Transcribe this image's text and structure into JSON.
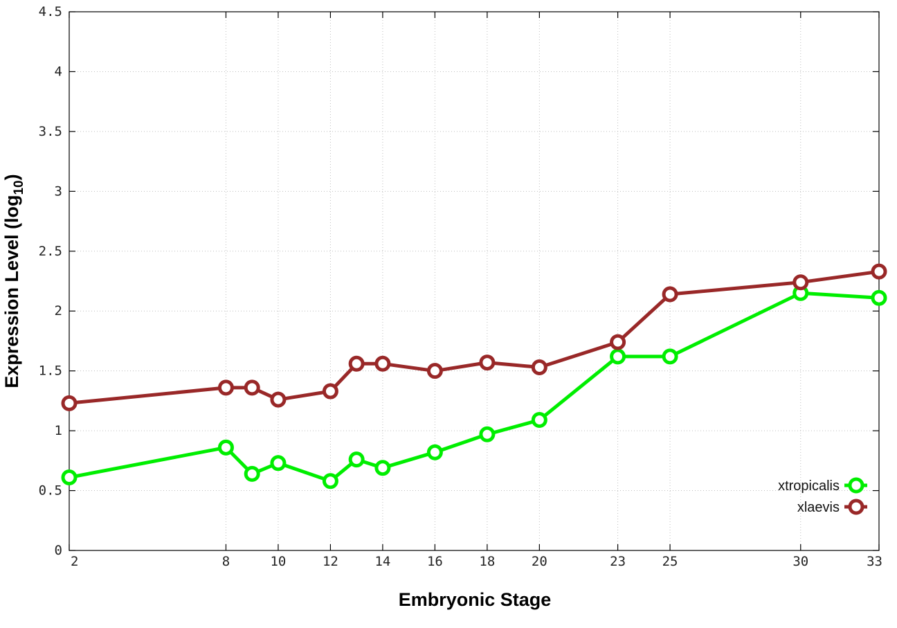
{
  "chart_data": {
    "type": "line",
    "xlabel": "Embryonic Stage",
    "ylabel_main": "Expression Level (log",
    "ylabel_sub": "10",
    "ylabel_close": ")",
    "x_ticks": [
      2,
      8,
      10,
      12,
      14,
      16,
      18,
      20,
      23,
      25,
      30,
      33
    ],
    "x_tick_labels": [
      "2",
      "8",
      "10",
      "12",
      "14",
      "16",
      "18",
      "20",
      "23",
      "25",
      "30",
      "33"
    ],
    "y_ticks": [
      0,
      0.5,
      1,
      1.5,
      2,
      2.5,
      3,
      3.5,
      4,
      4.5
    ],
    "y_tick_labels": [
      "0",
      "0.5",
      "1",
      "1.5",
      "2",
      "2.5",
      "3",
      "3.5",
      "4",
      "4.5"
    ],
    "xlim": [
      2,
      33
    ],
    "ylim": [
      0,
      4.5
    ],
    "grid": true,
    "legend_position": "bottom-right",
    "x": [
      2,
      8,
      9,
      10,
      12,
      13,
      14,
      16,
      18,
      20,
      23,
      25,
      30,
      33
    ],
    "series": [
      {
        "name": "xtropicalis",
        "color": "#00ee00",
        "values": [
          0.61,
          0.86,
          0.64,
          0.73,
          0.58,
          0.76,
          0.69,
          0.82,
          0.97,
          1.09,
          1.62,
          1.62,
          2.15,
          2.11
        ]
      },
      {
        "name": "xlaevis",
        "color": "#992828",
        "values": [
          1.23,
          1.36,
          1.36,
          1.26,
          1.33,
          1.56,
          1.56,
          1.5,
          1.57,
          1.53,
          1.74,
          2.14,
          2.24,
          2.33
        ]
      }
    ]
  }
}
